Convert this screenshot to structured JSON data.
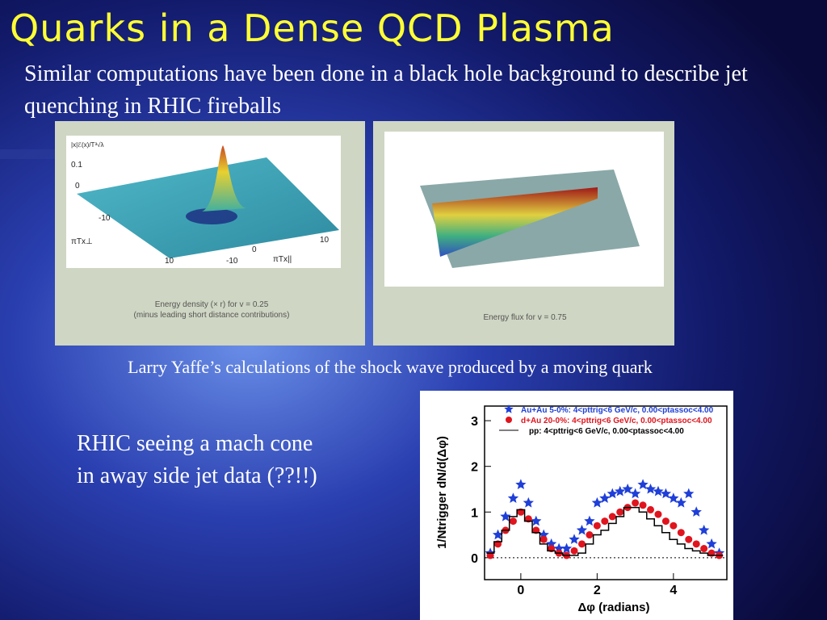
{
  "title": "Quarks in a Dense QCD Plasma",
  "intro": "Similar computations have been done in a black hole background to describe jet quenching in RHIC fireballs",
  "left_figure": {
    "labels": [
      "|x|ℰ(x)/T³√λ",
      "0.1",
      "0",
      "-10",
      "πTx⊥",
      "0",
      "10",
      "-10",
      "πTx||",
      "10"
    ],
    "caption": [
      "Energy density (× r) for v = 0.25",
      "(minus leading short distance contributions)"
    ]
  },
  "right_figure": {
    "caption": "Energy flux for v = 0.75"
  },
  "figure_caption": "Larry Yaffe’s calculations of the shock wave produced by a moving quark",
  "note": "RHIC seeing a mach cone in away side jet data (??!!)",
  "chart_data": {
    "type": "scatter",
    "x_label": "Δφ (radians)",
    "y_label": "1/Ntrigger dN/d(Δφ)",
    "x": [
      -0.8,
      -0.6,
      -0.4,
      -0.2,
      0,
      0.2,
      0.4,
      0.6,
      0.8,
      1.0,
      1.2,
      1.4,
      1.6,
      1.8,
      2.0,
      2.2,
      2.4,
      2.6,
      2.8,
      3.0,
      3.2,
      3.4,
      3.6,
      3.8,
      4.0,
      4.2,
      4.4,
      4.6,
      4.8,
      5.0,
      5.2
    ],
    "series": [
      {
        "name": "Au+Au 5-0%: 4<pttrig<6 GeV/c, 0.00<ptassoc<4.00",
        "color": "#1f3fd8",
        "marker": "star",
        "values": [
          0.1,
          0.5,
          0.9,
          1.3,
          1.6,
          1.2,
          0.8,
          0.5,
          0.3,
          0.2,
          0.2,
          0.4,
          0.6,
          0.8,
          1.2,
          1.3,
          1.4,
          1.45,
          1.5,
          1.4,
          1.6,
          1.5,
          1.45,
          1.4,
          1.3,
          1.2,
          1.4,
          1.0,
          0.6,
          0.3,
          0.1
        ]
      },
      {
        "name": "d+Au 20-0%: 4<pttrig<6 GeV/c, 0.00<ptassoc<4.00",
        "color": "#e0141e",
        "marker": "circle",
        "values": [
          0.05,
          0.3,
          0.6,
          0.8,
          1.0,
          0.85,
          0.6,
          0.4,
          0.2,
          0.1,
          0.05,
          0.15,
          0.3,
          0.5,
          0.7,
          0.8,
          0.9,
          1.0,
          1.1,
          1.2,
          1.15,
          1.05,
          0.95,
          0.8,
          0.7,
          0.55,
          0.4,
          0.3,
          0.2,
          0.1,
          0.05
        ]
      },
      {
        "name": "pp: 4<pttrig<6 GeV/c, 0.00<ptassoc<4.00",
        "color": "#000000",
        "marker": "step",
        "values": [
          0.1,
          0.35,
          0.6,
          0.9,
          1.05,
          0.8,
          0.55,
          0.3,
          0.15,
          0.1,
          0.05,
          0.05,
          0.1,
          0.3,
          0.5,
          0.6,
          0.75,
          0.9,
          1.1,
          1.1,
          1.0,
          0.85,
          0.7,
          0.55,
          0.4,
          0.3,
          0.2,
          0.15,
          0.1,
          0.05,
          0.05
        ]
      }
    ],
    "xlim": [
      -0.95,
      5.4
    ],
    "xticks": [
      0,
      2,
      4
    ],
    "ylim": [
      -0.48,
      3.32
    ],
    "yticks": [
      0,
      1,
      2,
      3
    ]
  }
}
